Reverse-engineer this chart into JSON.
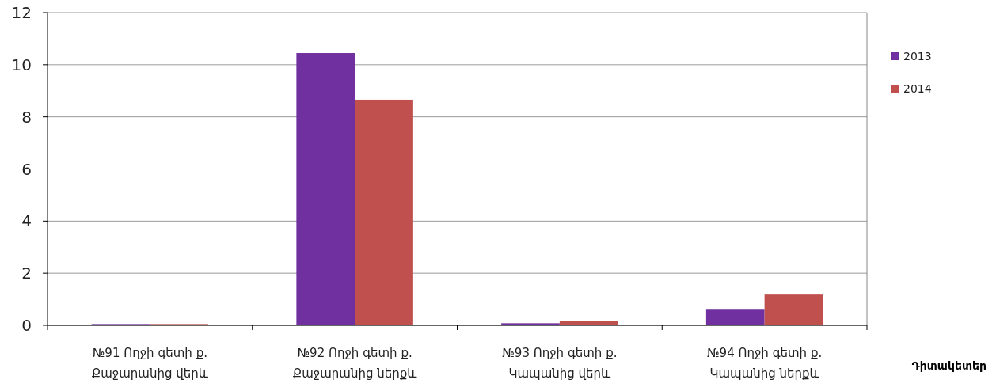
{
  "chart_data": {
    "type": "bar",
    "xlabel": "Դիտակետեր",
    "categories": [
      "№91 Ողջի գետի ք.\nՔաջարանից վերև",
      "№92 Ողջի գետի ք.\nՔաջարանից ներքև",
      "№93 Ողջի գետի ք.\nԿապանից վերև",
      "№94 Ողջի գետի ք.\nԿապանից ներքև"
    ],
    "series": [
      {
        "name": "2013",
        "color": "#7030a0",
        "values": [
          0.05,
          10.45,
          0.08,
          0.6
        ]
      },
      {
        "name": "2014",
        "color": "#c0504d",
        "values": [
          0.05,
          8.66,
          0.17,
          1.18
        ]
      }
    ],
    "ylim": [
      0,
      12
    ],
    "yticks": [
      0,
      2,
      4,
      6,
      8,
      10,
      12
    ],
    "grid": true,
    "legend": "right"
  }
}
